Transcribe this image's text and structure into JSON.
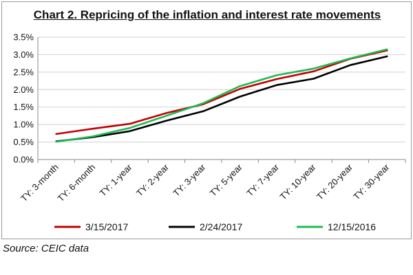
{
  "chart_data": {
    "type": "line",
    "title": "Chart 2. Repricing of the inflation and interest rate movements",
    "xlabel": "",
    "ylabel": "",
    "categories": [
      "TY: 3-month",
      "TY: 6-month",
      "TY: 1-year",
      "TY: 2-year",
      "TY: 3-year",
      "TY: 5-year",
      "TY: 7-year",
      "TY: 10-year",
      "TY: 20-year",
      "TY: 30-year"
    ],
    "y_ticks": [
      "0.0%",
      "0.5%",
      "1.0%",
      "1.5%",
      "2.0%",
      "2.5%",
      "3.0%",
      "3.5%"
    ],
    "ylim": [
      0,
      3.5
    ],
    "grid": true,
    "legend_position": "bottom",
    "series": [
      {
        "name": "3/15/2017",
        "color": "#c00000",
        "values": [
          0.73,
          0.88,
          1.02,
          1.33,
          1.58,
          2.02,
          2.3,
          2.52,
          2.88,
          3.12
        ]
      },
      {
        "name": "2/24/2017",
        "color": "#000000",
        "values": [
          0.52,
          0.64,
          0.81,
          1.11,
          1.38,
          1.8,
          2.13,
          2.31,
          2.7,
          2.95
        ]
      },
      {
        "name": "12/15/2016",
        "color": "#1db954",
        "values": [
          0.51,
          0.66,
          0.9,
          1.25,
          1.61,
          2.1,
          2.41,
          2.6,
          2.89,
          3.15
        ]
      }
    ]
  },
  "source_note": "Source: CEIC data"
}
